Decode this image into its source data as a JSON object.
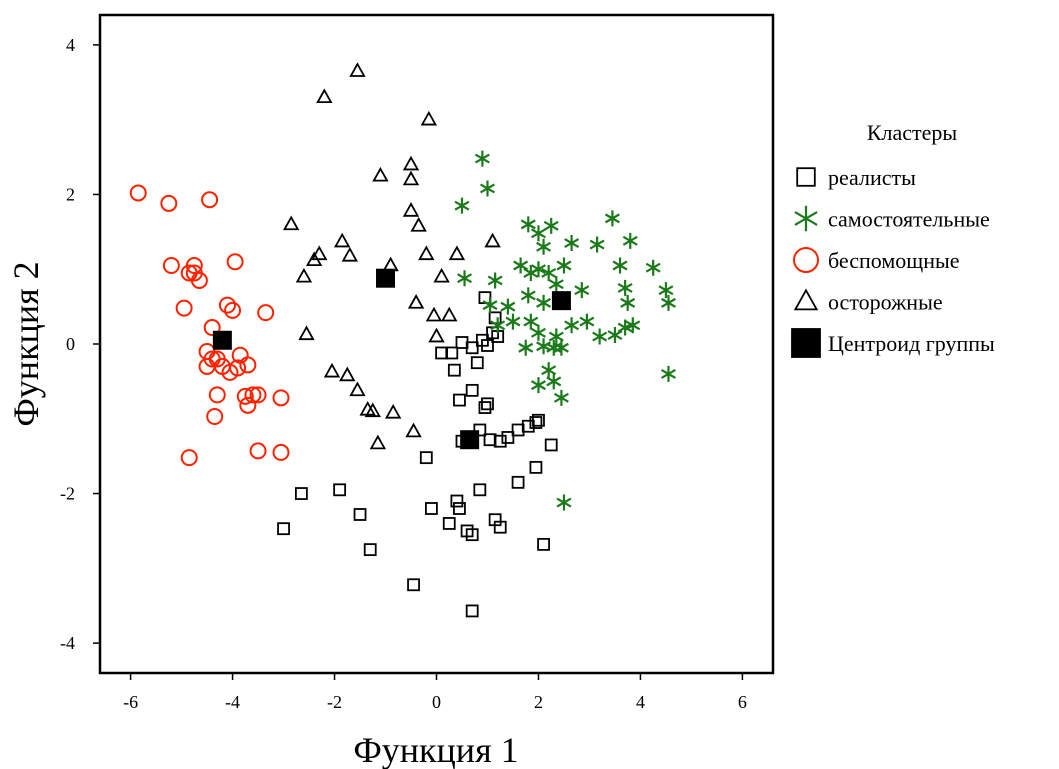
{
  "chart_data": {
    "type": "scatter",
    "title": "",
    "xlabel": "Функция 1",
    "ylabel": "Функция 2",
    "xlim": [
      -6.6,
      6.6
    ],
    "ylim": [
      -4.4,
      4.4
    ],
    "xticks": [
      -6,
      -4,
      -2,
      0,
      2,
      4,
      6
    ],
    "yticks": [
      -4,
      -2,
      0,
      2,
      4
    ],
    "xtick_labels": [
      "-6",
      "-4",
      "-2",
      "0",
      "2",
      "4",
      "6"
    ],
    "ytick_labels": [
      "-4",
      "-2",
      "0",
      "2",
      "4"
    ],
    "grid": false,
    "legend": {
      "title": "Кластеры",
      "position": "right"
    },
    "series": [
      {
        "name": "реалисты",
        "marker": "square",
        "color": "#000000",
        "points": [
          [
            0.1,
            -0.12
          ],
          [
            0.3,
            -0.12
          ],
          [
            0.5,
            0.02
          ],
          [
            0.7,
            -0.05
          ],
          [
            0.9,
            0.05
          ],
          [
            1.0,
            -0.02
          ],
          [
            1.2,
            0.1
          ],
          [
            0.8,
            -0.25
          ],
          [
            0.95,
            0.62
          ],
          [
            1.15,
            0.35
          ],
          [
            1.1,
            0.15
          ],
          [
            0.35,
            -0.35
          ],
          [
            0.45,
            -0.75
          ],
          [
            0.7,
            -0.62
          ],
          [
            0.95,
            -0.85
          ],
          [
            1.0,
            -0.8
          ],
          [
            0.5,
            -1.3
          ],
          [
            0.7,
            -1.25
          ],
          [
            0.85,
            -1.15
          ],
          [
            1.05,
            -1.28
          ],
          [
            1.25,
            -1.3
          ],
          [
            1.4,
            -1.25
          ],
          [
            1.6,
            -1.15
          ],
          [
            1.8,
            -1.1
          ],
          [
            1.95,
            -1.05
          ],
          [
            2.0,
            -1.02
          ],
          [
            2.25,
            -1.35
          ],
          [
            1.95,
            -1.65
          ],
          [
            1.6,
            -1.85
          ],
          [
            0.85,
            -1.95
          ],
          [
            0.4,
            -2.1
          ],
          [
            0.45,
            -2.2
          ],
          [
            0.25,
            -2.4
          ],
          [
            -0.1,
            -2.2
          ],
          [
            1.15,
            -2.35
          ],
          [
            1.25,
            -2.45
          ],
          [
            0.6,
            -2.5
          ],
          [
            0.7,
            -2.55
          ],
          [
            2.1,
            -2.68
          ],
          [
            -0.2,
            -1.52
          ],
          [
            -2.65,
            -2.0
          ],
          [
            -1.9,
            -1.95
          ],
          [
            -3.0,
            -2.47
          ],
          [
            -1.5,
            -2.28
          ],
          [
            -1.3,
            -2.75
          ],
          [
            -0.45,
            -3.22
          ],
          [
            0.7,
            -3.57
          ]
        ]
      },
      {
        "name": "самостоятельные",
        "marker": "star",
        "color": "#1a7a1a",
        "points": [
          [
            0.9,
            2.48
          ],
          [
            1.0,
            2.08
          ],
          [
            0.5,
            1.85
          ],
          [
            0.55,
            0.88
          ],
          [
            1.8,
            1.6
          ],
          [
            2.25,
            1.58
          ],
          [
            2.0,
            1.48
          ],
          [
            2.1,
            1.3
          ],
          [
            2.65,
            1.35
          ],
          [
            3.15,
            1.33
          ],
          [
            3.45,
            1.68
          ],
          [
            3.8,
            1.38
          ],
          [
            1.65,
            1.05
          ],
          [
            1.85,
            0.95
          ],
          [
            2.0,
            1.0
          ],
          [
            2.2,
            0.95
          ],
          [
            2.5,
            1.05
          ],
          [
            3.6,
            1.05
          ],
          [
            4.25,
            1.02
          ],
          [
            1.15,
            0.85
          ],
          [
            1.05,
            0.52
          ],
          [
            1.4,
            0.5
          ],
          [
            1.8,
            0.65
          ],
          [
            2.1,
            0.55
          ],
          [
            2.35,
            0.8
          ],
          [
            2.85,
            0.72
          ],
          [
            3.7,
            0.75
          ],
          [
            4.5,
            0.72
          ],
          [
            3.75,
            0.55
          ],
          [
            4.55,
            0.55
          ],
          [
            1.2,
            0.25
          ],
          [
            1.5,
            0.3
          ],
          [
            1.85,
            0.3
          ],
          [
            2.0,
            0.15
          ],
          [
            2.35,
            0.1
          ],
          [
            2.65,
            0.25
          ],
          [
            2.95,
            0.3
          ],
          [
            3.2,
            0.1
          ],
          [
            3.5,
            0.12
          ],
          [
            3.7,
            0.22
          ],
          [
            3.85,
            0.25
          ],
          [
            1.75,
            -0.05
          ],
          [
            2.1,
            -0.03
          ],
          [
            2.3,
            -0.05
          ],
          [
            2.45,
            -0.05
          ],
          [
            2.2,
            -0.35
          ],
          [
            2.0,
            -0.55
          ],
          [
            2.3,
            -0.5
          ],
          [
            2.45,
            -0.72
          ],
          [
            4.55,
            -0.4
          ],
          [
            2.5,
            -2.12
          ]
        ]
      },
      {
        "name": "беспомощные",
        "marker": "circle",
        "color": "#ff2200",
        "points": [
          [
            -5.85,
            2.02
          ],
          [
            -5.25,
            1.88
          ],
          [
            -4.45,
            1.93
          ],
          [
            -5.2,
            1.05
          ],
          [
            -4.85,
            0.95
          ],
          [
            -4.75,
            0.95
          ],
          [
            -4.65,
            0.85
          ],
          [
            -4.75,
            1.05
          ],
          [
            -3.95,
            1.1
          ],
          [
            -4.95,
            0.48
          ],
          [
            -4.1,
            0.52
          ],
          [
            -4.0,
            0.45
          ],
          [
            -3.35,
            0.42
          ],
          [
            -4.4,
            0.22
          ],
          [
            -4.5,
            -0.1
          ],
          [
            -4.4,
            -0.2
          ],
          [
            -4.3,
            -0.2
          ],
          [
            -4.5,
            -0.3
          ],
          [
            -4.2,
            -0.3
          ],
          [
            -4.05,
            -0.38
          ],
          [
            -3.85,
            -0.15
          ],
          [
            -3.9,
            -0.32
          ],
          [
            -3.7,
            -0.28
          ],
          [
            -4.3,
            -0.68
          ],
          [
            -3.75,
            -0.7
          ],
          [
            -3.6,
            -0.68
          ],
          [
            -3.5,
            -0.68
          ],
          [
            -3.7,
            -0.82
          ],
          [
            -3.05,
            -0.72
          ],
          [
            -4.35,
            -0.97
          ],
          [
            -3.5,
            -1.43
          ],
          [
            -3.05,
            -1.45
          ],
          [
            -4.85,
            -1.52
          ]
        ]
      },
      {
        "name": "осторожные",
        "marker": "triangle",
        "color": "#000000",
        "points": [
          [
            -1.55,
            3.65
          ],
          [
            -2.2,
            3.3
          ],
          [
            -0.15,
            3.0
          ],
          [
            -1.1,
            2.25
          ],
          [
            -0.5,
            2.4
          ],
          [
            -0.5,
            2.2
          ],
          [
            -0.5,
            1.78
          ],
          [
            -2.85,
            1.6
          ],
          [
            -0.35,
            1.58
          ],
          [
            -1.85,
            1.37
          ],
          [
            -2.3,
            1.2
          ],
          [
            -2.4,
            1.12
          ],
          [
            -1.7,
            1.18
          ],
          [
            -0.2,
            1.2
          ],
          [
            0.4,
            1.2
          ],
          [
            1.1,
            1.37
          ],
          [
            -2.6,
            0.9
          ],
          [
            -0.9,
            1.05
          ],
          [
            0.1,
            0.9
          ],
          [
            -0.4,
            0.55
          ],
          [
            -0.05,
            0.38
          ],
          [
            0.25,
            0.38
          ],
          [
            0.0,
            0.1
          ],
          [
            -2.55,
            0.13
          ],
          [
            -2.05,
            -0.37
          ],
          [
            -1.75,
            -0.42
          ],
          [
            -1.55,
            -0.62
          ],
          [
            -1.35,
            -0.88
          ],
          [
            -1.25,
            -0.9
          ],
          [
            -0.85,
            -0.92
          ],
          [
            -1.15,
            -1.33
          ],
          [
            -0.45,
            -1.17
          ]
        ]
      }
    ],
    "centroids": {
      "name": "Центроид группы",
      "marker": "filled-square",
      "color": "#000000",
      "points": [
        [
          -4.2,
          0.05
        ],
        [
          -1.0,
          0.88
        ],
        [
          0.65,
          -1.28
        ],
        [
          2.45,
          0.58
        ]
      ]
    }
  }
}
